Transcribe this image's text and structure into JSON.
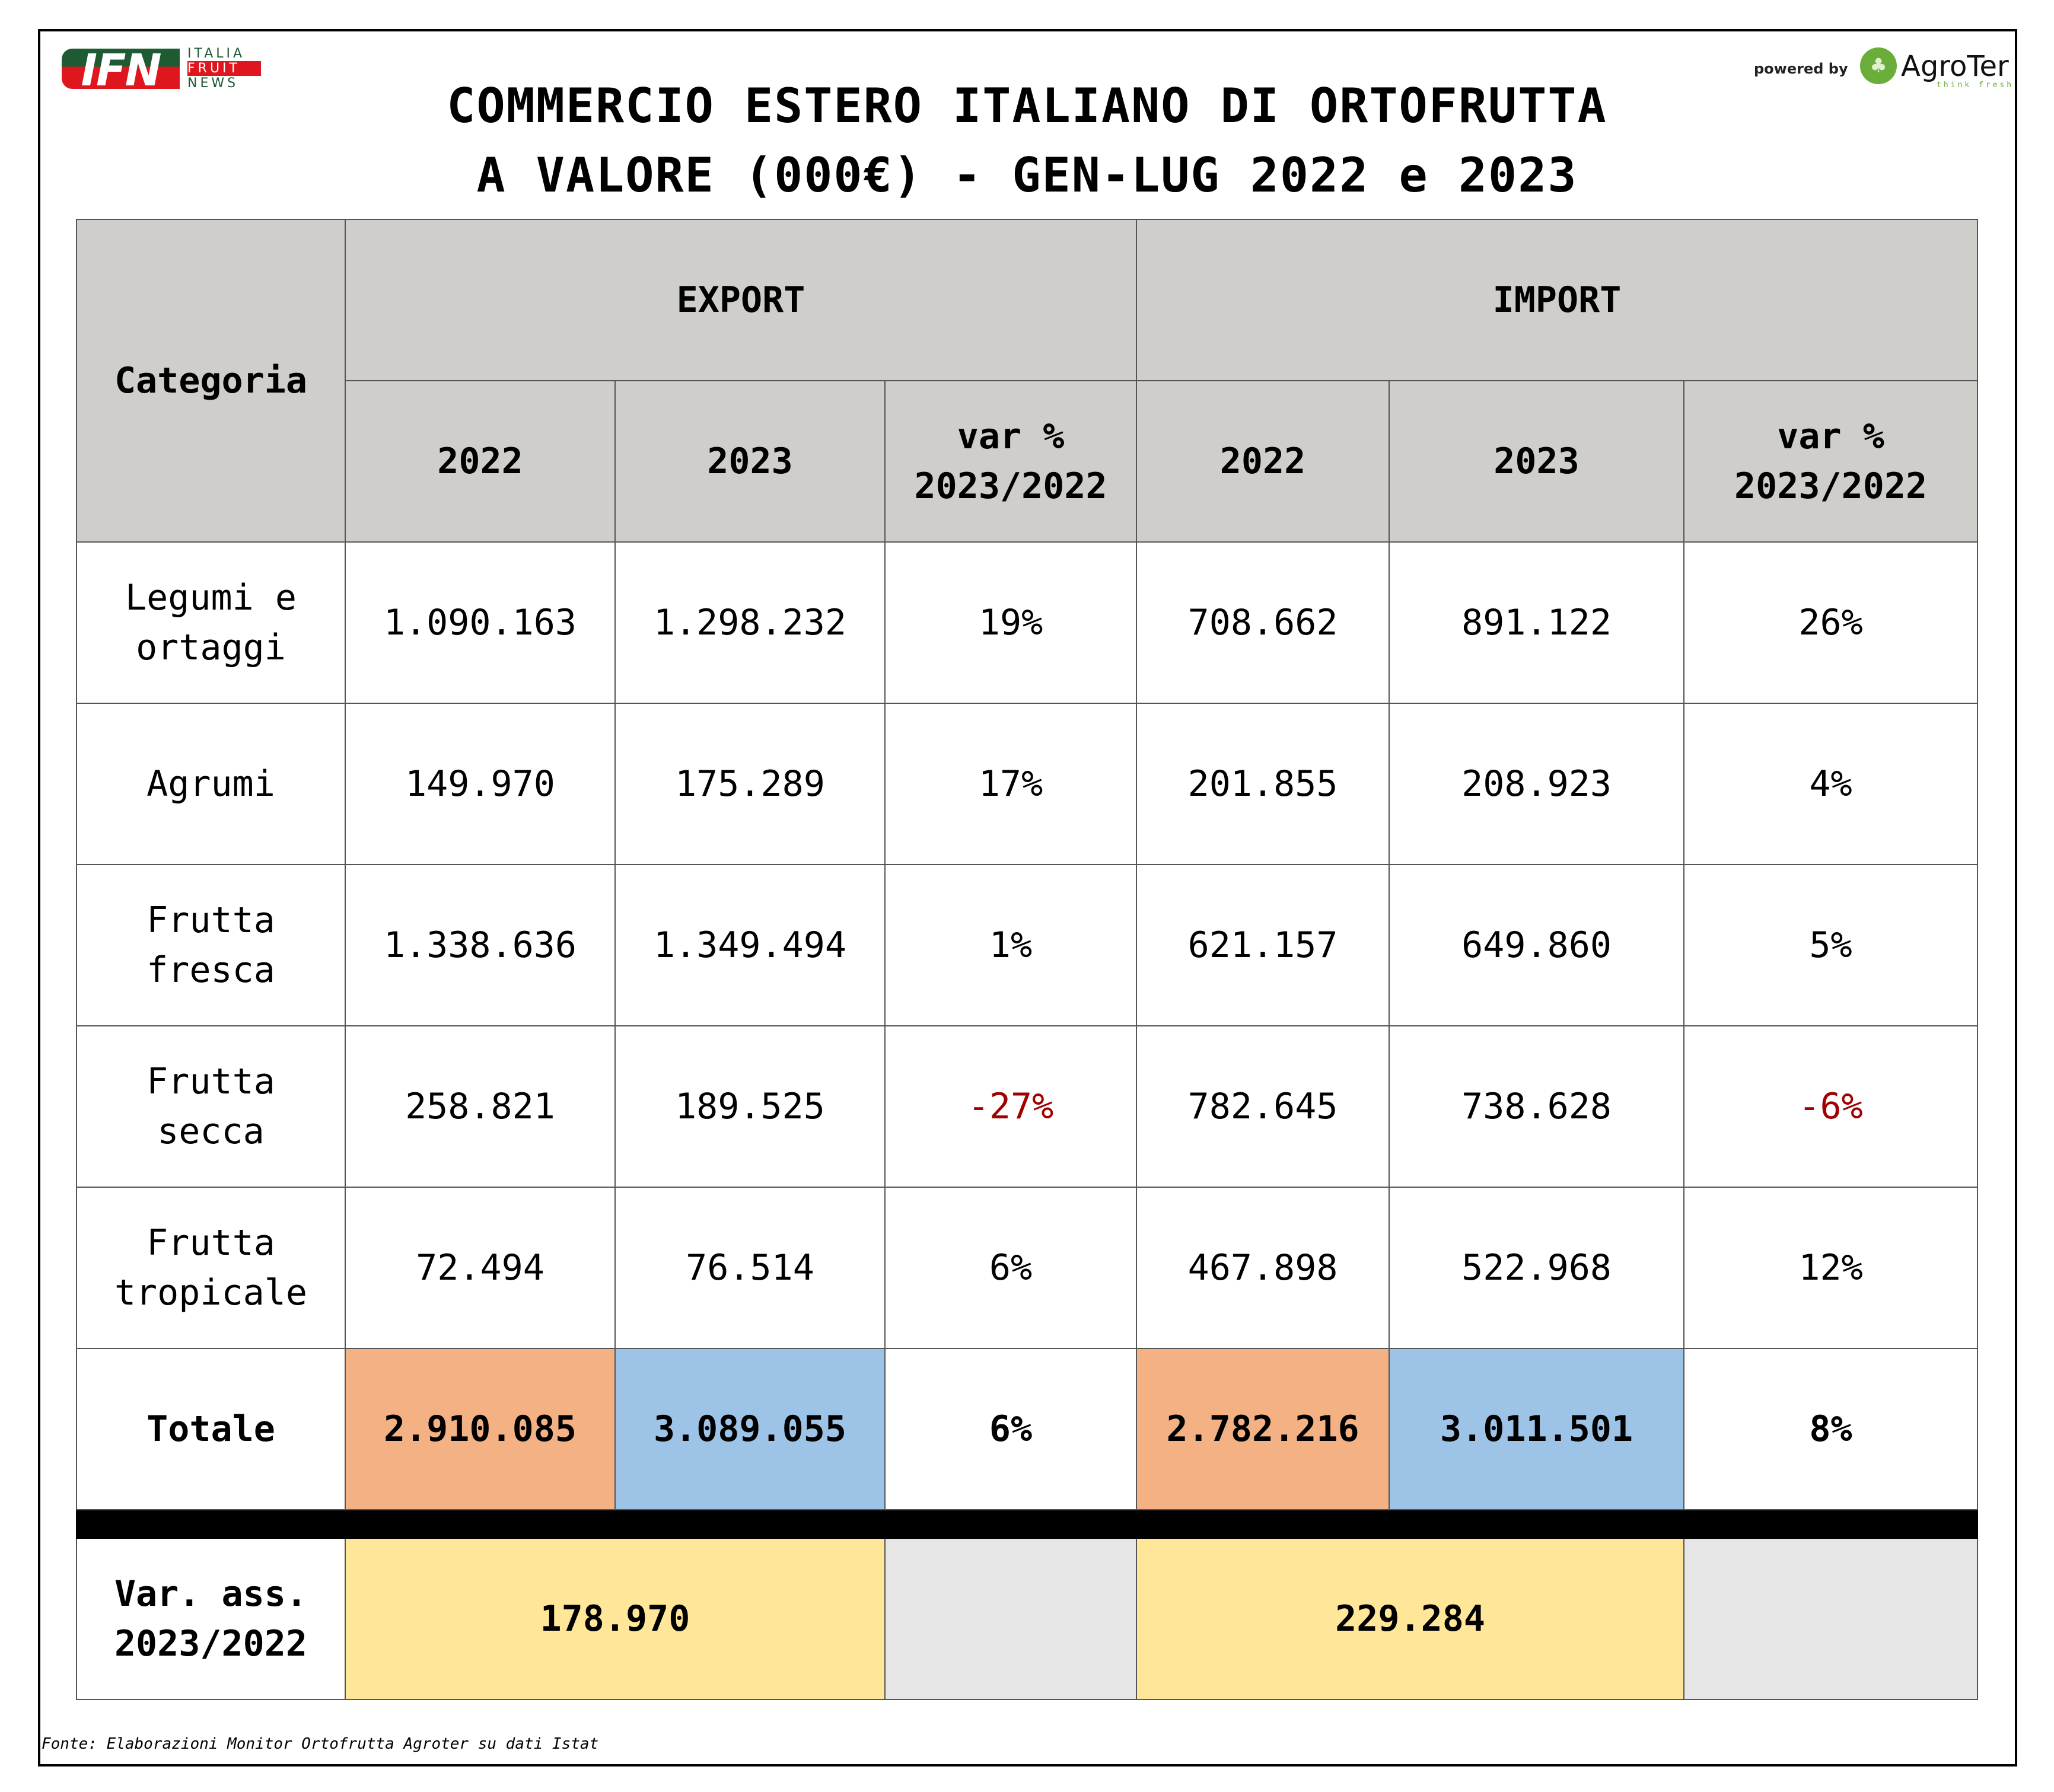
{
  "logos": {
    "left": {
      "mark": "IFN",
      "words": [
        "ITALIA",
        "FRUIT",
        "NEWS"
      ]
    },
    "right": {
      "powered_by": "powered by",
      "brand": "AgroTer",
      "tagline": "think fresh"
    }
  },
  "title": {
    "line1": "COMMERCIO ESTERO ITALIANO DI ORTOFRUTTA",
    "line2": "A VALORE (000€) - GEN-LUG 2022 e 2023"
  },
  "header": {
    "categoria": "Categoria",
    "export": "EXPORT",
    "import": "IMPORT",
    "y2022": "2022",
    "y2023": "2023",
    "var": "var %",
    "var2": "2023/2022"
  },
  "rows": [
    {
      "cat1": "Legumi e",
      "cat2": "ortaggi",
      "e22": "1.090.163",
      "e23": "1.298.232",
      "ev": "19%",
      "i22": "708.662",
      "i23": "891.122",
      "iv": "26%"
    },
    {
      "cat1": "Agrumi",
      "cat2": "",
      "e22": "149.970",
      "e23": "175.289",
      "ev": "17%",
      "i22": "201.855",
      "i23": "208.923",
      "iv": "4%"
    },
    {
      "cat1": "Frutta",
      "cat2": "fresca",
      "e22": "1.338.636",
      "e23": "1.349.494",
      "ev": "1%",
      "i22": "621.157",
      "i23": "649.860",
      "iv": "5%"
    },
    {
      "cat1": "Frutta",
      "cat2": "secca",
      "e22": "258.821",
      "e23": "189.525",
      "ev": "-27%",
      "i22": "782.645",
      "i23": "738.628",
      "iv": "-6%"
    },
    {
      "cat1": "Frutta",
      "cat2": "tropicale",
      "e22": "72.494",
      "e23": "76.514",
      "ev": "6%",
      "i22": "467.898",
      "i23": "522.968",
      "iv": "12%"
    }
  ],
  "total": {
    "label": "Totale",
    "e22": "2.910.085",
    "e23": "3.089.055",
    "ev": "6%",
    "i22": "2.782.216",
    "i23": "3.011.501",
    "iv": "8%"
  },
  "var_abs": {
    "label1": "Var. ass.",
    "label2": "2023/2022",
    "export": "178.970",
    "import": "229.284"
  },
  "colors": {
    "total_2022": "#f4b183",
    "total_2023": "#9dc3e6",
    "var_abs": "#ffe699",
    "negative": "#a00000",
    "header": "#d0cecb"
  },
  "footer": "Fonte: Elaborazioni Monitor Ortofrutta Agroter su dati Istat"
}
